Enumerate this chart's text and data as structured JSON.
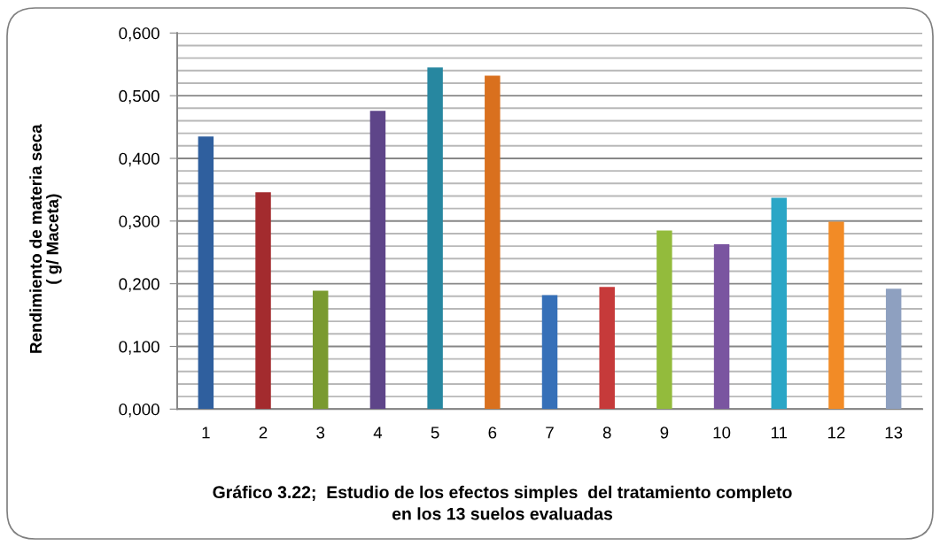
{
  "chart_data": {
    "type": "bar",
    "title": "Gráfico 3.22;  Estudio de los efectos simples  del tratamiento completo\nen los 13 suelos evaluadas",
    "ylabel": "Rendimiento de materia seca\n( g/ Maceta)",
    "categories": [
      "1",
      "2",
      "3",
      "4",
      "5",
      "6",
      "7",
      "8",
      "9",
      "10",
      "11",
      "12",
      "13"
    ],
    "values": [
      0.435,
      0.346,
      0.189,
      0.476,
      0.545,
      0.532,
      0.182,
      0.195,
      0.285,
      0.263,
      0.337,
      0.299,
      0.192
    ],
    "colors": [
      "#2f5f9e",
      "#a32b2e",
      "#7a9a30",
      "#5e4589",
      "#2787a0",
      "#d9701e",
      "#3670b8",
      "#c63a3a",
      "#93bb3c",
      "#7a55a0",
      "#2aa6c6",
      "#f28b26",
      "#8ea0c0"
    ],
    "ylim": [
      0,
      0.6
    ],
    "yticks": [
      {
        "value": 0,
        "label": "0,000"
      },
      {
        "value": 0.02,
        "label": null
      },
      {
        "value": 0.04,
        "label": null
      },
      {
        "value": 0.06,
        "label": null
      },
      {
        "value": 0.08,
        "label": null
      },
      {
        "value": 0.1,
        "label": "0,100"
      },
      {
        "value": 0.12,
        "label": null
      },
      {
        "value": 0.14,
        "label": null
      },
      {
        "value": 0.16,
        "label": null
      },
      {
        "value": 0.18,
        "label": null
      },
      {
        "value": 0.2,
        "label": "0,200"
      },
      {
        "value": 0.22,
        "label": null
      },
      {
        "value": 0.24,
        "label": null
      },
      {
        "value": 0.26,
        "label": null
      },
      {
        "value": 0.28,
        "label": null
      },
      {
        "value": 0.3,
        "label": "0,300"
      },
      {
        "value": 0.32,
        "label": null
      },
      {
        "value": 0.34,
        "label": null
      },
      {
        "value": 0.36,
        "label": null
      },
      {
        "value": 0.38,
        "label": null
      },
      {
        "value": 0.4,
        "label": "0,400"
      },
      {
        "value": 0.42,
        "label": null
      },
      {
        "value": 0.44,
        "label": null
      },
      {
        "value": 0.46,
        "label": null
      },
      {
        "value": 0.48,
        "label": null
      },
      {
        "value": 0.5,
        "label": "0,500"
      },
      {
        "value": 0.52,
        "label": null
      },
      {
        "value": 0.54,
        "label": null
      },
      {
        "value": 0.56,
        "label": null
      },
      {
        "value": 0.58,
        "label": null
      },
      {
        "value": 0.6,
        "label": "0,600"
      }
    ],
    "grid": "y",
    "legend": false
  }
}
